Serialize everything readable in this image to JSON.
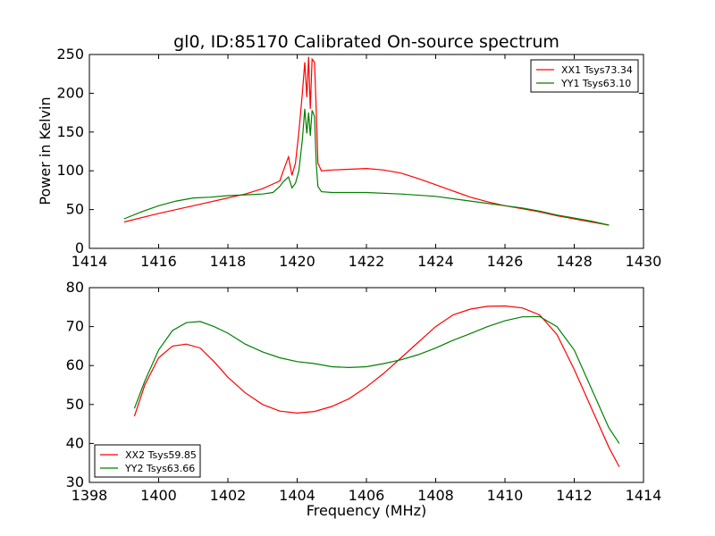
{
  "chart_data": [
    {
      "type": "line",
      "title": "gl0, ID:85170 Calibrated On-source spectrum",
      "xlabel": "",
      "ylabel": "Power in Kelvin",
      "xlim": [
        1414,
        1430
      ],
      "ylim": [
        0,
        250
      ],
      "xticks": [
        1414,
        1416,
        1418,
        1420,
        1422,
        1424,
        1426,
        1428,
        1430
      ],
      "yticks": [
        0,
        50,
        100,
        150,
        200,
        250
      ],
      "legend": "top-right",
      "series": [
        {
          "name": "XX1 Tsys73.34",
          "color": "#ff0000",
          "x": [
            1415.0,
            1416.0,
            1417.0,
            1418.0,
            1418.5,
            1419.0,
            1419.3,
            1419.5,
            1419.6,
            1419.75,
            1419.85,
            1419.95,
            1420.05,
            1420.15,
            1420.22,
            1420.28,
            1420.33,
            1420.38,
            1420.43,
            1420.5,
            1420.55,
            1420.6,
            1420.7,
            1421.0,
            1421.5,
            1422.0,
            1422.5,
            1423.0,
            1423.5,
            1424.0,
            1424.5,
            1425.0,
            1425.5,
            1426.0,
            1426.5,
            1427.0,
            1427.5,
            1428.0,
            1428.5,
            1429.0
          ],
          "y": [
            34,
            45,
            55,
            65,
            70,
            77,
            83,
            87,
            100,
            118,
            94,
            110,
            150,
            200,
            240,
            195,
            247,
            180,
            244,
            240,
            180,
            110,
            100,
            101,
            102,
            103,
            101,
            97,
            90,
            82,
            74,
            66,
            60,
            55,
            51,
            47,
            42,
            38,
            34,
            30
          ]
        },
        {
          "name": "YY1 Tsys63.10",
          "color": "#008000",
          "x": [
            1415.0,
            1415.5,
            1416.0,
            1416.5,
            1417.0,
            1417.5,
            1418.0,
            1418.5,
            1419.0,
            1419.3,
            1419.5,
            1419.6,
            1419.75,
            1419.85,
            1419.95,
            1420.05,
            1420.15,
            1420.22,
            1420.28,
            1420.33,
            1420.38,
            1420.43,
            1420.5,
            1420.55,
            1420.6,
            1420.7,
            1421.0,
            1422.0,
            1423.0,
            1424.0,
            1425.0,
            1426.0,
            1426.5,
            1427.0,
            1427.5,
            1428.0,
            1428.5,
            1429.0
          ],
          "y": [
            38,
            47,
            55,
            61,
            65,
            66,
            68,
            69,
            70,
            72,
            80,
            86,
            92,
            78,
            84,
            100,
            140,
            180,
            148,
            175,
            145,
            178,
            170,
            110,
            80,
            73,
            72,
            72,
            70,
            67,
            61,
            55,
            52,
            48,
            43,
            39,
            35,
            30
          ]
        }
      ]
    },
    {
      "type": "line",
      "title": "",
      "xlabel": "Frequency (MHz)",
      "ylabel": "",
      "xlim": [
        1398,
        1414
      ],
      "ylim": [
        30,
        80
      ],
      "xticks": [
        1398,
        1400,
        1402,
        1404,
        1406,
        1408,
        1410,
        1412,
        1414
      ],
      "yticks": [
        30,
        40,
        50,
        60,
        70,
        80
      ],
      "legend": "bottom-left",
      "series": [
        {
          "name": "XX2 Tsys59.85",
          "color": "#ff0000",
          "x": [
            1399.3,
            1399.6,
            1400.0,
            1400.4,
            1400.8,
            1401.2,
            1401.6,
            1402.0,
            1402.5,
            1403.0,
            1403.5,
            1404.0,
            1404.5,
            1405.0,
            1405.5,
            1406.0,
            1406.5,
            1407.0,
            1407.5,
            1408.0,
            1408.5,
            1409.0,
            1409.5,
            1410.0,
            1410.5,
            1411.0,
            1411.5,
            1412.0,
            1412.5,
            1413.0,
            1413.3
          ],
          "y": [
            47,
            55,
            62,
            65,
            65.5,
            64.5,
            61,
            57,
            53,
            50,
            48.3,
            47.8,
            48.2,
            49.5,
            51.5,
            54.5,
            58,
            62,
            66,
            70,
            73,
            74.5,
            75.2,
            75.3,
            74.8,
            73,
            68,
            59,
            49,
            39,
            34
          ]
        },
        {
          "name": "YY2 Tsys63.66",
          "color": "#008000",
          "x": [
            1399.3,
            1399.6,
            1400.0,
            1400.4,
            1400.8,
            1401.2,
            1401.6,
            1402.0,
            1402.5,
            1403.0,
            1403.5,
            1404.0,
            1404.5,
            1405.0,
            1405.5,
            1406.0,
            1406.5,
            1407.0,
            1407.5,
            1408.0,
            1408.5,
            1409.0,
            1409.5,
            1410.0,
            1410.5,
            1411.0,
            1411.5,
            1412.0,
            1412.5,
            1413.0,
            1413.3
          ],
          "y": [
            49,
            56,
            64,
            69,
            71,
            71.3,
            70,
            68.3,
            65.5,
            63.5,
            62,
            61,
            60.5,
            59.7,
            59.5,
            59.7,
            60.5,
            61.5,
            62.8,
            64.5,
            66.5,
            68.2,
            70,
            71.5,
            72.5,
            72.6,
            70,
            64,
            54,
            44,
            40
          ]
        }
      ]
    }
  ]
}
